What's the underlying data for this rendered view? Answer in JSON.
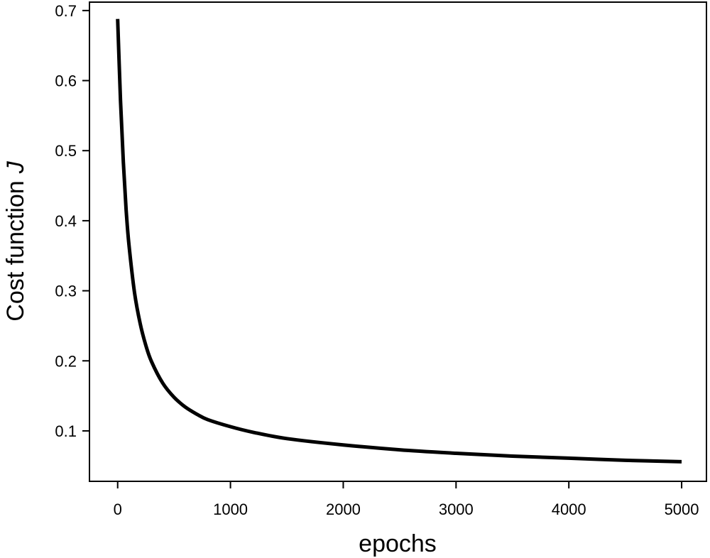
{
  "chart_data": {
    "type": "line",
    "xlabel": "epochs",
    "ylabel": "Cost function",
    "ylabel_symbol": "J",
    "xlim": [
      -250,
      5220
    ],
    "ylim": [
      0.028,
      0.712
    ],
    "xticks": [
      0,
      1000,
      2000,
      3000,
      4000,
      5000
    ],
    "yticks": [
      0.1,
      0.2,
      0.3,
      0.4,
      0.5,
      0.6,
      0.7
    ],
    "grid": false,
    "series": [
      {
        "color": "#000000",
        "x": [
          0,
          25,
          50,
          75,
          100,
          150,
          200,
          250,
          300,
          400,
          500,
          600,
          700,
          800,
          1000,
          1200,
          1500,
          2000,
          2500,
          3000,
          3500,
          4000,
          4500,
          5000
        ],
        "y": [
          0.688,
          0.572,
          0.484,
          0.416,
          0.366,
          0.297,
          0.253,
          0.222,
          0.199,
          0.168,
          0.148,
          0.134,
          0.124,
          0.116,
          0.106,
          0.098,
          0.089,
          0.08,
          0.073,
          0.068,
          0.064,
          0.061,
          0.058,
          0.056
        ]
      }
    ]
  }
}
